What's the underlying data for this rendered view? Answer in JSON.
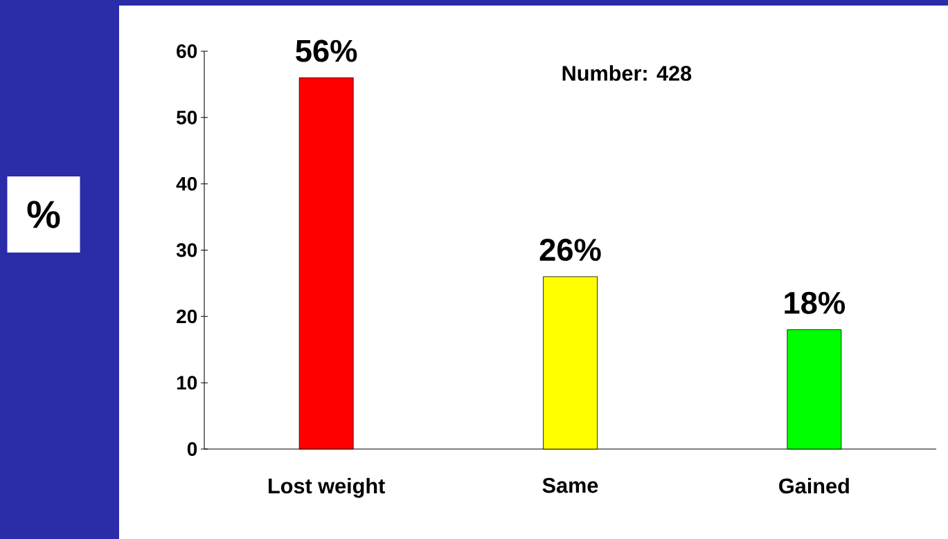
{
  "chart_data": {
    "type": "bar",
    "ylabel": "%",
    "categories": [
      "Lost weight",
      "Same",
      "Gained"
    ],
    "values": [
      56,
      26,
      18
    ],
    "colors": [
      "#ff0000",
      "#ffff00",
      "#00ff00"
    ],
    "value_labels": [
      "56%",
      "26%",
      "18%"
    ],
    "annotations": [
      "Number: 428"
    ],
    "ylim": [
      0,
      60
    ],
    "yticks": [
      0,
      10,
      20,
      30,
      40,
      50,
      60
    ]
  }
}
